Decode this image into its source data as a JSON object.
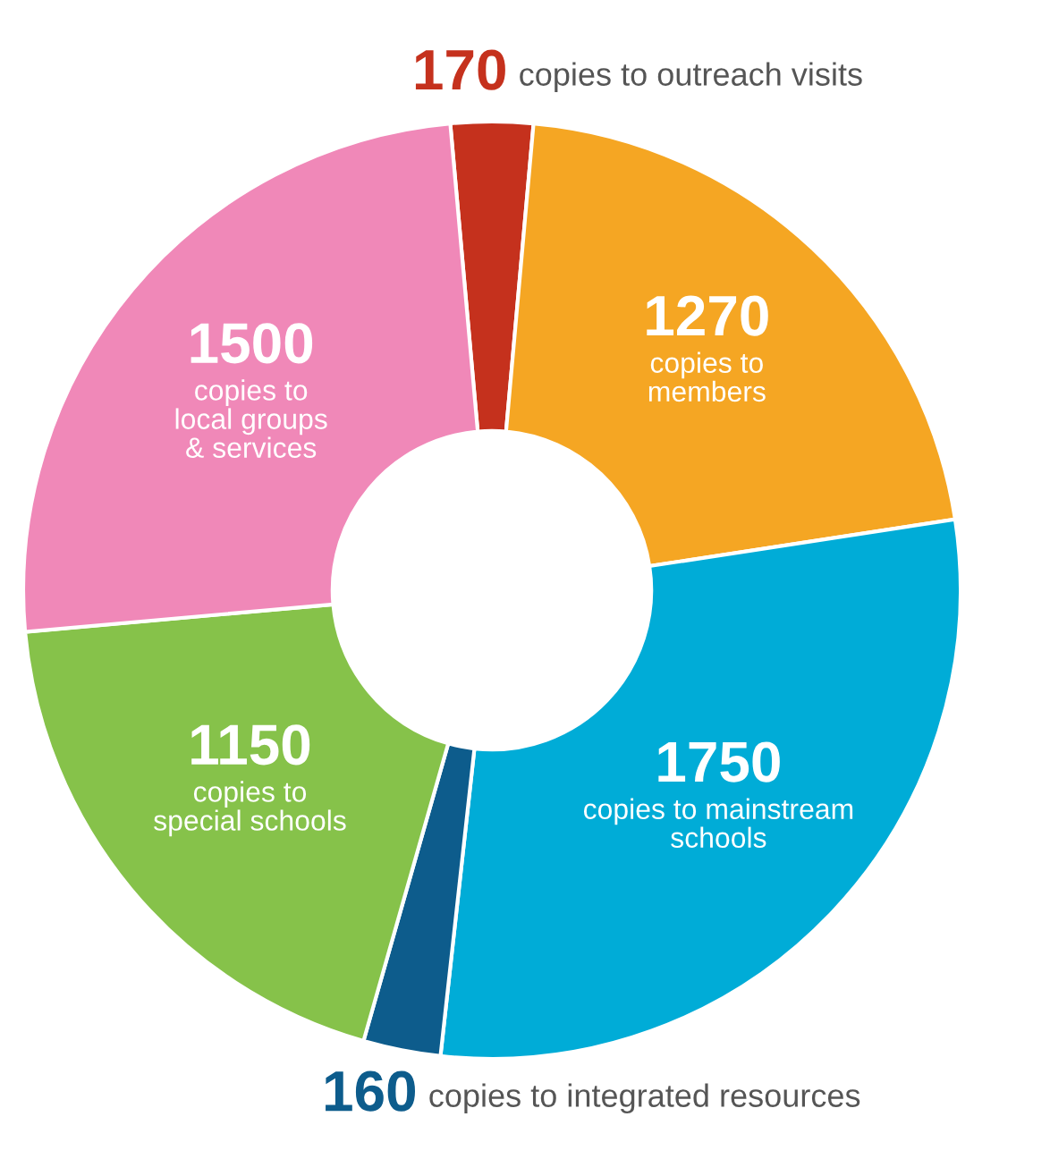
{
  "chart_data": {
    "type": "donut",
    "categories": [
      "copies to outreach visits",
      "copies to\nmembers",
      "copies to mainstream\nschools",
      "copies to integrated resources",
      "copies to\nspecial schools",
      "copies to\nlocal groups\n& services"
    ],
    "values": [
      170,
      1270,
      1750,
      160,
      1150,
      1500
    ],
    "colors": [
      "#c5311d",
      "#f5a623",
      "#00acd7",
      "#0d5c8c",
      "#86c24a",
      "#f088b8"
    ],
    "data_labels": true,
    "legend": false
  }
}
